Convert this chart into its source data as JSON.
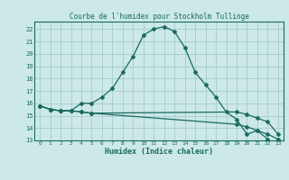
{
  "title": "Courbe de l'humidex pour Stockholm Tullinge",
  "xlabel": "Humidex (Indice chaleur)",
  "bg_color": "#cce8e8",
  "grid_color": "#aacfcf",
  "line_color": "#1a6b5e",
  "xlim": [
    -0.5,
    23.5
  ],
  "ylim": [
    13,
    22.6
  ],
  "xticks": [
    0,
    1,
    2,
    3,
    4,
    5,
    6,
    7,
    8,
    9,
    10,
    11,
    12,
    13,
    14,
    15,
    16,
    17,
    18,
    19,
    20,
    21,
    22,
    23
  ],
  "yticks": [
    13,
    14,
    15,
    16,
    17,
    18,
    19,
    20,
    21,
    22
  ],
  "line1_x": [
    0,
    1,
    2,
    3,
    4,
    5,
    6,
    7,
    8,
    9,
    10,
    11,
    12,
    13,
    14,
    15,
    16,
    17,
    18,
    19,
    20,
    21,
    22
  ],
  "line1_y": [
    15.8,
    15.5,
    15.4,
    15.4,
    16.0,
    16.0,
    16.5,
    17.2,
    18.5,
    19.8,
    21.5,
    22.0,
    22.2,
    21.8,
    20.5,
    18.5,
    17.5,
    16.5,
    15.3,
    14.7,
    13.5,
    13.8,
    13.1
  ],
  "line2_x": [
    0,
    1,
    2,
    3,
    4,
    5,
    19,
    20,
    21,
    22,
    23
  ],
  "line2_y": [
    15.8,
    15.5,
    15.4,
    15.4,
    15.3,
    15.2,
    15.3,
    15.1,
    14.8,
    14.5,
    13.5
  ],
  "line3_x": [
    0,
    1,
    2,
    3,
    4,
    5,
    19,
    20,
    21,
    22,
    23
  ],
  "line3_y": [
    15.8,
    15.5,
    15.4,
    15.4,
    15.3,
    15.2,
    14.3,
    14.1,
    13.8,
    13.5,
    13.1
  ]
}
